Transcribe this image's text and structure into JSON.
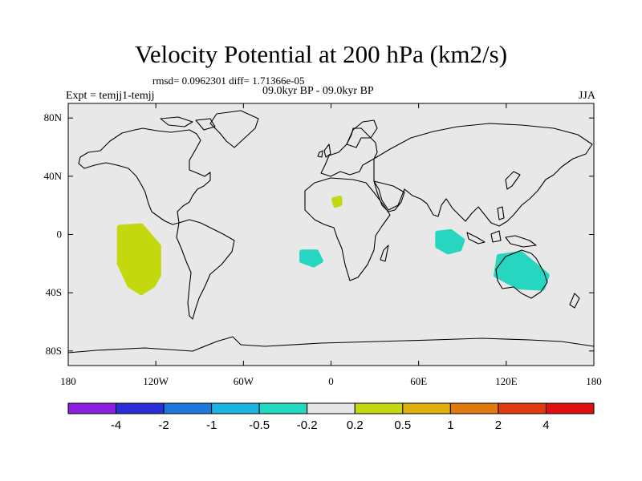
{
  "title": "Velocity Potential at 200 hPa (km2/s)",
  "stats_text": "rmsd= 0.0962301 diff= 1.71366e-05",
  "expt_text": "Expt = temjj1-temjj",
  "period_text": "09.0kyr BP - 09.0kyr BP",
  "season": "JJA",
  "map": {
    "lon_range": [
      -180,
      180
    ],
    "lat_range": [
      -90,
      90
    ],
    "land_color": "#e8e8e8",
    "coast_color": "#000000",
    "lat_ticks": [
      {
        "lat": 80,
        "label": "80N"
      },
      {
        "lat": 40,
        "label": "40N"
      },
      {
        "lat": 0,
        "label": "0"
      },
      {
        "lat": -40,
        "label": "40S"
      },
      {
        "lat": -80,
        "label": "80S"
      }
    ],
    "lon_ticks": [
      {
        "lon": -180,
        "label": "180"
      },
      {
        "lon": -120,
        "label": "120W"
      },
      {
        "lon": -60,
        "label": "60W"
      },
      {
        "lon": 0,
        "label": "0"
      },
      {
        "lon": 60,
        "label": "60E"
      },
      {
        "lon": 120,
        "label": "120E"
      },
      {
        "lon": 180,
        "label": "180"
      }
    ],
    "anomalies": [
      {
        "name": "pacific-positive-anomaly",
        "color": "#c3d80f",
        "points": [
          [
            -145,
            5
          ],
          [
            -130,
            6
          ],
          [
            -118,
            -8
          ],
          [
            -118,
            -28
          ],
          [
            -122,
            -35
          ],
          [
            -130,
            -40
          ],
          [
            -138,
            -35
          ],
          [
            -145,
            -20
          ]
        ]
      },
      {
        "name": "sahara-positive-anomaly",
        "color": "#c3d80f",
        "points": [
          [
            2,
            24
          ],
          [
            6,
            25
          ],
          [
            6,
            21
          ],
          [
            3,
            20
          ]
        ]
      },
      {
        "name": "atlantic-negative-anomaly",
        "color": "#26d6c0",
        "points": [
          [
            -20,
            -12
          ],
          [
            -10,
            -12
          ],
          [
            -7,
            -18
          ],
          [
            -12,
            -21
          ],
          [
            -20,
            -18
          ]
        ]
      },
      {
        "name": "indian-ocean-negative-anomaly",
        "color": "#26d6c0",
        "points": [
          [
            73,
            1
          ],
          [
            82,
            2
          ],
          [
            90,
            -4
          ],
          [
            88,
            -10
          ],
          [
            80,
            -12
          ],
          [
            73,
            -8
          ]
        ]
      },
      {
        "name": "australia-negative-anomaly",
        "color": "#26d6c0",
        "points": [
          [
            115,
            -15
          ],
          [
            130,
            -13
          ],
          [
            148,
            -28
          ],
          [
            145,
            -37
          ],
          [
            128,
            -36
          ],
          [
            113,
            -28
          ]
        ]
      }
    ]
  },
  "colorbar": {
    "colors": [
      "#8a1fe0",
      "#2a2ed8",
      "#1e78dc",
      "#1cb4e4",
      "#22d8c0",
      "#e6e6e6",
      "#c3d80f",
      "#e0b00e",
      "#e07a0e",
      "#e03a0e",
      "#e00f0f"
    ],
    "labels": [
      "-4",
      "-2",
      "-1",
      "-0.5",
      "-0.2",
      "0.2",
      "0.5",
      "1",
      "2",
      "4"
    ]
  }
}
